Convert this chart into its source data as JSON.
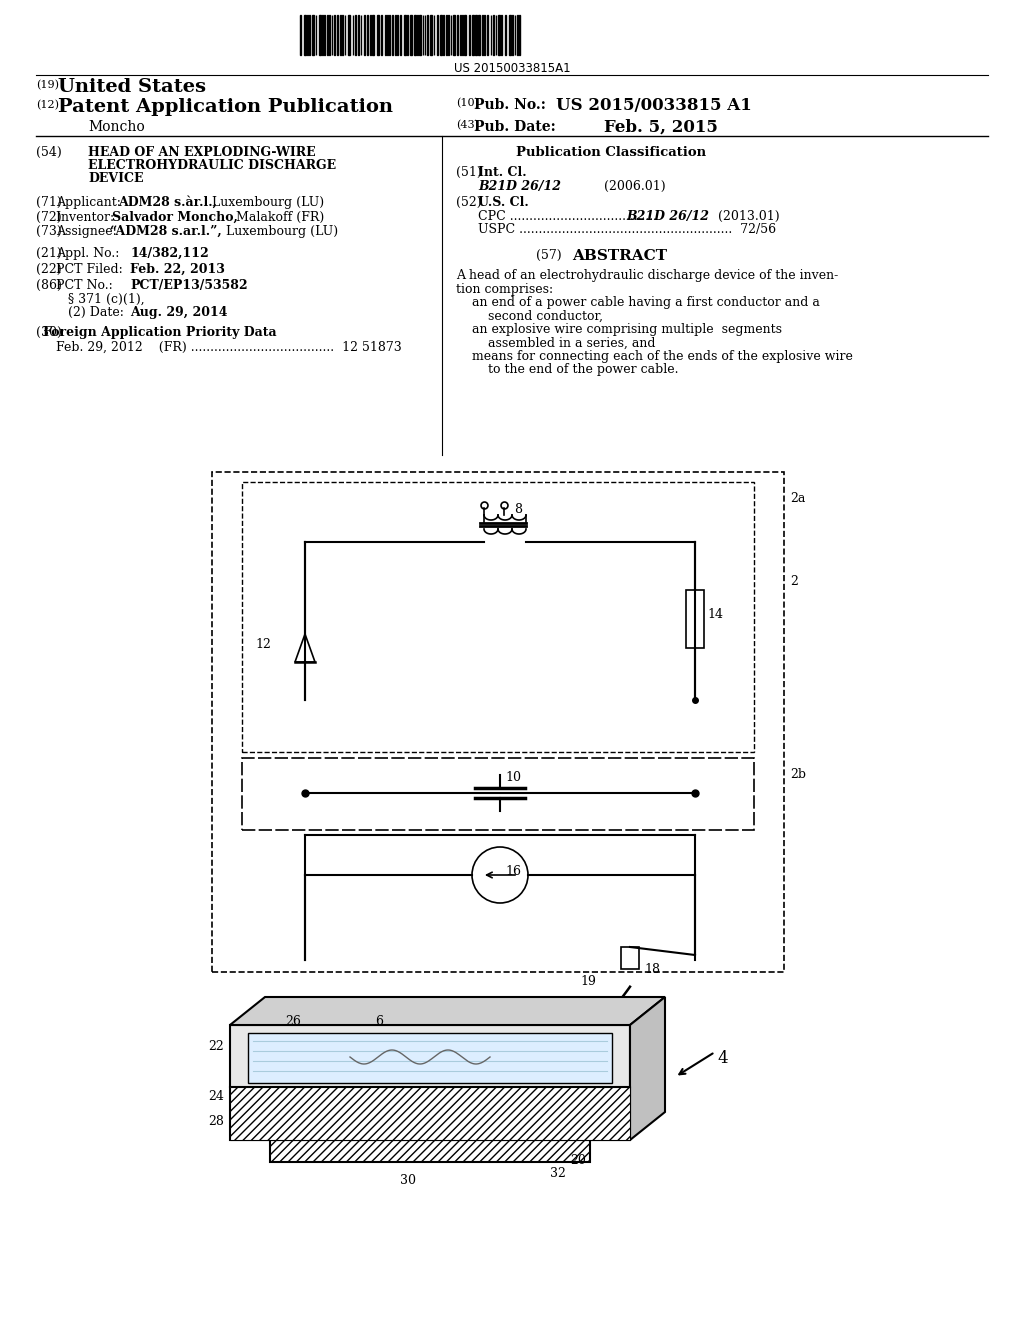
{
  "title_barcode_text": "US 20150033815A1",
  "header_19": "(19)",
  "header_19_text": "United States",
  "header_12": "(12)",
  "header_12_text": "Patent Application Publication",
  "header_10": "(10)",
  "header_10_text": "Pub. No.:",
  "header_10_val": "US 2015/0033815 A1",
  "header_43": "(43)",
  "header_43_text": "Pub. Date:",
  "header_43_val": "Feb. 5, 2015",
  "inventor_name": "Moncho",
  "field54_label": "(54)",
  "field54_lines": [
    "HEAD OF AN EXPLODING-WIRE",
    "ELECTROHYDRAULIC DISCHARGE",
    "DEVICE"
  ],
  "field71_label": "(71)",
  "field72_label": "(72)",
  "field73_label": "(73)",
  "field21_label": "(21)",
  "field22_label": "(22)",
  "field86_label": "(86)",
  "field30_label": "(30)",
  "field30_text": "Foreign Application Priority Data",
  "field30b_text": "Feb. 29, 2012    (FR) .....................................  12 51873",
  "pub_class_title": "Publication Classification",
  "field51_label": "(51)",
  "field51_text": "Int. Cl.",
  "field51b_text": "B21D 26/12",
  "field51c_text": "(2006.01)",
  "field52_label": "(52)",
  "field52_text": "U.S. Cl.",
  "field57_label": "(57)",
  "field57_text": "ABSTRACT",
  "abstract_lines": [
    "A head of an electrohydraulic discharge device of the inven-",
    "tion comprises:",
    "    an end of a power cable having a first conductor and a",
    "        second conductor,",
    "    an explosive wire comprising multiple  segments",
    "        assembled in a series, and",
    "    means for connecting each of the ends of the explosive wire",
    "        to the end of the power cable."
  ],
  "bg_color": "#ffffff",
  "text_color": "#000000"
}
